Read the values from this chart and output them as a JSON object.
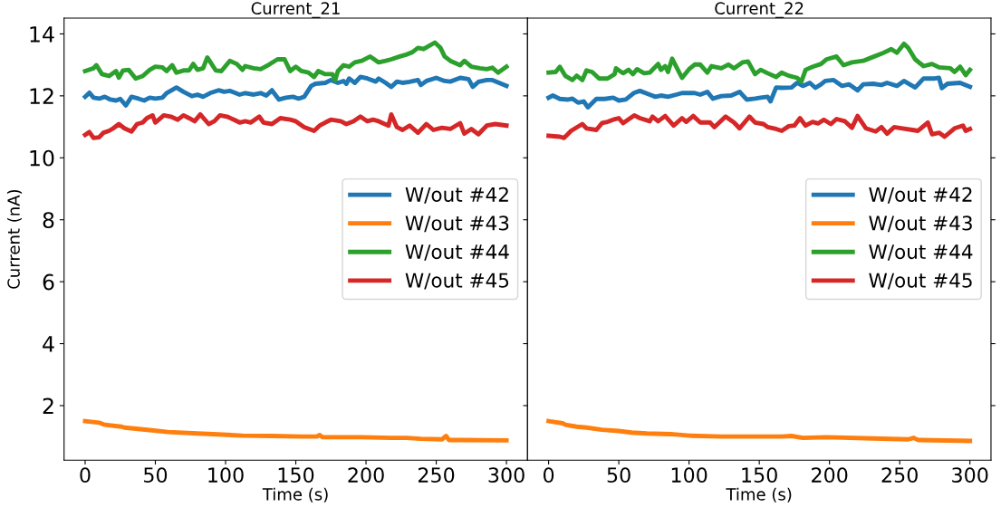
{
  "chart_data": [
    {
      "type": "line",
      "title": "Current_21",
      "xlabel": "Time (s)",
      "ylabel": "Current (nA)",
      "xlim": [
        -15,
        315
      ],
      "xticks": [
        0,
        50,
        100,
        150,
        200,
        250,
        300
      ],
      "ylim": [
        0.24,
        14.51
      ],
      "yticks": [
        2,
        4,
        6,
        8,
        10,
        12,
        14
      ],
      "legend": "center right",
      "grid": false,
      "series": [
        {
          "name": "W/out #42",
          "color": "#1f77b4",
          "x": [
            0,
            3,
            6,
            10,
            14,
            18,
            22,
            25,
            29,
            33,
            38,
            42,
            46,
            50,
            55,
            58,
            65,
            70,
            76,
            80,
            84,
            89,
            95,
            99,
            103,
            110,
            114,
            120,
            125,
            129,
            133,
            138,
            143,
            148,
            152,
            156,
            161,
            164,
            171,
            175,
            180,
            184,
            186,
            188,
            192,
            196,
            201,
            207,
            209,
            214,
            218,
            222,
            226,
            231,
            237,
            239,
            243,
            250,
            256,
            260,
            267,
            273,
            276,
            280,
            286,
            290,
            300
          ],
          "values": [
            11.97,
            12.1,
            11.94,
            11.91,
            11.97,
            11.88,
            11.85,
            11.9,
            11.69,
            11.97,
            11.91,
            11.85,
            11.94,
            11.91,
            11.94,
            12.09,
            12.27,
            12.13,
            11.99,
            12.04,
            11.97,
            12.09,
            12.18,
            12.13,
            12.16,
            12.04,
            12.09,
            12.04,
            12.09,
            12.01,
            12.18,
            11.88,
            11.94,
            11.97,
            11.91,
            11.97,
            12.32,
            12.39,
            12.42,
            12.51,
            12.42,
            12.48,
            12.39,
            12.56,
            12.42,
            12.61,
            12.56,
            12.46,
            12.56,
            12.42,
            12.29,
            12.46,
            12.42,
            12.45,
            12.51,
            12.35,
            12.48,
            12.58,
            12.48,
            12.46,
            12.58,
            12.54,
            12.29,
            12.45,
            12.51,
            12.51,
            12.32
          ]
        },
        {
          "name": "W/out #43",
          "color": "#ff7f0e",
          "x": [
            0,
            10,
            14,
            26,
            28,
            46,
            59,
            80,
            91,
            112,
            133,
            154,
            165,
            167,
            169,
            197,
            218,
            229,
            239,
            254,
            257,
            259,
            300
          ],
          "values": [
            1.5,
            1.45,
            1.38,
            1.32,
            1.29,
            1.21,
            1.15,
            1.1,
            1.08,
            1.03,
            1.02,
            1.0,
            1.0,
            1.05,
            0.98,
            0.98,
            0.96,
            0.96,
            0.93,
            0.91,
            1.02,
            0.89,
            0.88
          ]
        },
        {
          "name": "W/out #44",
          "color": "#2ca02c",
          "x": [
            0,
            6,
            8,
            12,
            17,
            22,
            24,
            27,
            31,
            36,
            41,
            46,
            50,
            55,
            58,
            62,
            65,
            70,
            74,
            77,
            80,
            84,
            87,
            93,
            97,
            103,
            108,
            112,
            114,
            120,
            125,
            131,
            137,
            142,
            146,
            150,
            154,
            159,
            163,
            166,
            171,
            176,
            178,
            180,
            184,
            188,
            192,
            197,
            203,
            209,
            214,
            218,
            224,
            228,
            233,
            237,
            241,
            249,
            253,
            256,
            260,
            267,
            270,
            275,
            281,
            286,
            290,
            294,
            300
          ],
          "values": [
            12.8,
            12.89,
            12.99,
            12.7,
            12.64,
            12.8,
            12.59,
            12.82,
            12.84,
            12.56,
            12.64,
            12.84,
            12.94,
            12.92,
            12.8,
            12.99,
            12.75,
            12.82,
            12.82,
            13.03,
            12.84,
            12.89,
            13.24,
            12.82,
            12.8,
            13.13,
            13.03,
            12.84,
            12.96,
            12.89,
            12.86,
            13.01,
            13.18,
            13.18,
            12.8,
            12.94,
            12.8,
            12.75,
            12.61,
            12.8,
            12.7,
            12.7,
            12.51,
            12.8,
            12.99,
            12.94,
            13.08,
            13.13,
            13.27,
            13.08,
            13.13,
            13.18,
            13.27,
            13.32,
            13.41,
            13.55,
            13.51,
            13.72,
            13.55,
            13.27,
            13.13,
            12.99,
            13.13,
            12.94,
            12.89,
            12.86,
            12.91,
            12.75,
            12.94
          ]
        },
        {
          "name": "W/out #45",
          "color": "#d62728",
          "x": [
            0,
            3,
            6,
            10,
            13,
            17,
            20,
            24,
            28,
            33,
            37,
            41,
            44,
            48,
            50,
            56,
            61,
            66,
            70,
            74,
            78,
            82,
            88,
            92,
            96,
            101,
            106,
            110,
            114,
            118,
            124,
            127,
            133,
            139,
            146,
            150,
            156,
            163,
            167,
            171,
            175,
            182,
            186,
            191,
            196,
            201,
            205,
            209,
            216,
            218,
            222,
            226,
            231,
            237,
            243,
            248,
            254,
            260,
            267,
            270,
            275,
            280,
            286,
            292,
            300
          ],
          "values": [
            10.74,
            10.83,
            10.64,
            10.66,
            10.81,
            10.87,
            10.95,
            11.09,
            10.95,
            10.85,
            11.09,
            11.14,
            11.28,
            11.37,
            11.14,
            11.37,
            11.33,
            11.23,
            11.37,
            11.28,
            11.18,
            11.4,
            11.09,
            11.18,
            11.37,
            11.33,
            11.23,
            11.14,
            11.18,
            11.14,
            11.33,
            11.14,
            11.09,
            11.28,
            11.23,
            11.18,
            10.99,
            10.87,
            11.04,
            11.14,
            11.23,
            11.18,
            11.09,
            11.18,
            11.33,
            11.18,
            11.23,
            11.18,
            11.04,
            11.4,
            10.99,
            10.9,
            11.04,
            10.81,
            11.09,
            10.9,
            10.97,
            10.93,
            11.12,
            10.78,
            10.93,
            10.76,
            11.04,
            11.09,
            11.04
          ]
        }
      ]
    },
    {
      "type": "line",
      "title": "Current_22",
      "xlabel": "Time (s)",
      "xlim": [
        -15,
        315
      ],
      "xticks": [
        0,
        50,
        100,
        150,
        200,
        250,
        300
      ],
      "ylim": [
        0.24,
        14.51
      ],
      "yticks": [
        2,
        4,
        6,
        8,
        10,
        12,
        14
      ],
      "tick_labels": "x",
      "legend": "center right",
      "grid": false,
      "series": [
        {
          "name": "W/out #42",
          "color": "#1f77b4",
          "x": [
            0,
            3,
            8,
            14,
            17,
            21,
            25,
            28,
            34,
            40,
            46,
            50,
            55,
            61,
            65,
            72,
            76,
            80,
            85,
            91,
            95,
            104,
            108,
            113,
            117,
            123,
            130,
            136,
            141,
            147,
            151,
            156,
            158,
            162,
            166,
            173,
            177,
            181,
            186,
            190,
            194,
            197,
            203,
            209,
            214,
            220,
            224,
            231,
            237,
            241,
            248,
            253,
            261,
            267,
            275,
            278,
            280,
            284,
            293,
            300
          ],
          "values": [
            11.94,
            12.01,
            11.9,
            11.88,
            11.91,
            11.78,
            11.82,
            11.63,
            11.9,
            11.9,
            11.94,
            11.85,
            11.88,
            12.1,
            12.16,
            12.04,
            11.97,
            12.01,
            11.97,
            12.04,
            12.09,
            12.09,
            12.04,
            12.13,
            11.91,
            11.99,
            12.01,
            12.13,
            11.88,
            11.91,
            11.94,
            11.97,
            11.82,
            12.27,
            12.26,
            12.27,
            12.42,
            12.32,
            12.42,
            12.26,
            12.37,
            12.48,
            12.51,
            12.32,
            12.37,
            12.18,
            12.37,
            12.39,
            12.35,
            12.42,
            12.32,
            12.48,
            12.27,
            12.56,
            12.56,
            12.58,
            12.25,
            12.39,
            12.42,
            12.29
          ]
        },
        {
          "name": "W/out #43",
          "color": "#ff7f0e",
          "x": [
            0,
            10,
            12,
            20,
            27,
            38,
            50,
            59,
            70,
            87,
            100,
            123,
            145,
            166,
            173,
            181,
            198,
            231,
            256,
            260,
            263,
            300
          ],
          "values": [
            1.5,
            1.43,
            1.38,
            1.32,
            1.29,
            1.22,
            1.18,
            1.13,
            1.1,
            1.08,
            1.03,
            1.0,
            1.0,
            1.0,
            1.02,
            0.96,
            0.98,
            0.94,
            0.91,
            0.96,
            0.89,
            0.86
          ]
        },
        {
          "name": "W/out #44",
          "color": "#2ca02c",
          "x": [
            0,
            5,
            8,
            12,
            17,
            20,
            24,
            27,
            31,
            36,
            42,
            47,
            48,
            53,
            57,
            60,
            63,
            68,
            72,
            78,
            80,
            83,
            85,
            88,
            95,
            100,
            104,
            108,
            113,
            116,
            123,
            128,
            132,
            138,
            142,
            147,
            151,
            156,
            162,
            166,
            171,
            177,
            180,
            183,
            188,
            194,
            198,
            205,
            210,
            216,
            224,
            229,
            237,
            244,
            248,
            253,
            256,
            261,
            267,
            273,
            278,
            286,
            289,
            293,
            297,
            300
          ],
          "values": [
            12.75,
            12.77,
            12.94,
            12.64,
            12.51,
            12.65,
            12.51,
            12.82,
            12.77,
            12.56,
            12.56,
            12.7,
            12.89,
            12.73,
            12.84,
            12.7,
            12.86,
            12.73,
            12.75,
            13.03,
            12.84,
            12.96,
            12.77,
            13.2,
            12.58,
            12.86,
            13.01,
            13.01,
            12.75,
            12.96,
            12.89,
            13.01,
            12.89,
            13.08,
            13.11,
            12.7,
            12.84,
            12.73,
            12.61,
            12.75,
            12.65,
            12.58,
            12.46,
            12.84,
            12.94,
            13.03,
            13.18,
            13.27,
            12.99,
            13.08,
            13.13,
            13.22,
            13.36,
            13.51,
            13.39,
            13.68,
            13.55,
            13.18,
            12.96,
            13.03,
            12.92,
            12.89,
            12.77,
            12.94,
            12.67,
            12.84
          ]
        },
        {
          "name": "W/out #45",
          "color": "#d62728",
          "x": [
            0,
            8,
            11,
            16,
            24,
            27,
            34,
            38,
            42,
            46,
            50,
            53,
            61,
            65,
            72,
            74,
            78,
            83,
            89,
            95,
            98,
            103,
            108,
            115,
            118,
            126,
            132,
            136,
            143,
            147,
            153,
            156,
            162,
            166,
            171,
            175,
            179,
            183,
            188,
            192,
            196,
            201,
            205,
            211,
            216,
            220,
            226,
            233,
            237,
            241,
            246,
            252,
            259,
            263,
            270,
            273,
            278,
            282,
            289,
            295,
            297,
            300
          ],
          "values": [
            10.71,
            10.68,
            10.64,
            10.87,
            11.09,
            10.95,
            10.9,
            11.12,
            11.16,
            11.23,
            11.28,
            11.12,
            11.37,
            11.28,
            11.18,
            11.33,
            11.18,
            11.35,
            11.04,
            11.28,
            11.16,
            11.35,
            11.14,
            11.14,
            10.99,
            11.33,
            11.14,
            10.95,
            11.33,
            11.14,
            11.09,
            10.99,
            10.93,
            10.87,
            11.02,
            11.04,
            11.28,
            11.04,
            11.16,
            11.11,
            11.23,
            11.09,
            11.25,
            11.18,
            10.97,
            11.35,
            10.95,
            10.85,
            10.99,
            10.78,
            10.99,
            10.95,
            10.9,
            10.87,
            11.14,
            10.76,
            10.81,
            10.68,
            10.95,
            11.04,
            10.87,
            10.93
          ]
        }
      ]
    }
  ]
}
